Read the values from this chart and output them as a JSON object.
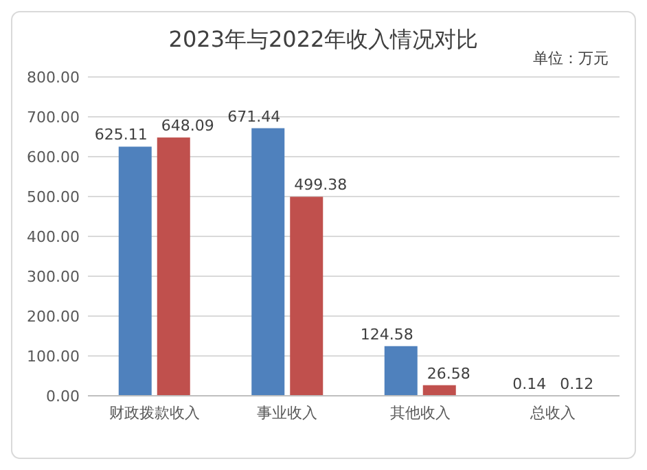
{
  "chart_data": {
    "type": "bar",
    "title": "2023年与2022年收入情况对比",
    "annotations": [
      "单位：万元"
    ],
    "categories": [
      "财政拨款收入",
      "事业收入",
      "其他收入",
      "总收入"
    ],
    "series": [
      {
        "color": "#4f81bd",
        "values": [
          625.11,
          671.44,
          124.58,
          0.14
        ]
      },
      {
        "color": "#c0504d",
        "values": [
          648.09,
          499.38,
          26.58,
          0.12
        ]
      }
    ],
    "ylim": [
      0,
      800
    ],
    "yticks": [
      {
        "value": 0,
        "label": "0.00"
      },
      {
        "value": 100,
        "label": "100.00"
      },
      {
        "value": 200,
        "label": "200.00"
      },
      {
        "value": 300,
        "label": "300.00"
      },
      {
        "value": 400,
        "label": "400.00"
      },
      {
        "value": 500,
        "label": "500.00"
      },
      {
        "value": 600,
        "label": "600.00"
      },
      {
        "value": 700,
        "label": "700.00"
      },
      {
        "value": 800,
        "label": "800.00"
      }
    ],
    "grid": "y",
    "data_labels": true
  }
}
